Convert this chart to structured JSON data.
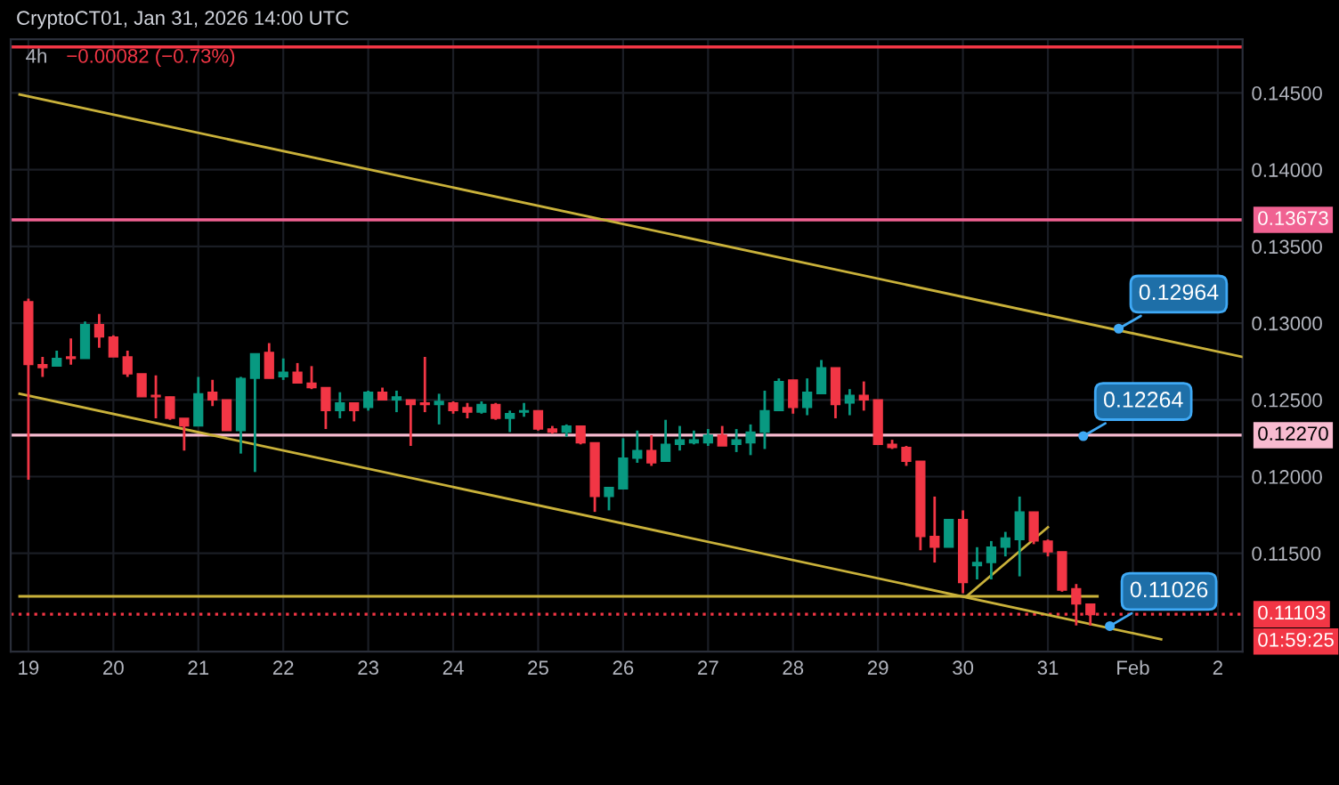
{
  "chart_data": {
    "type": "candlestick",
    "title": "4h",
    "subtitle": "−0.00082 (−0.73%)",
    "x": [
      "2026-01-19T00:00",
      "2026-01-19T04:00",
      "2026-01-19T08:00",
      "2026-01-19T12:00",
      "2026-01-19T16:00",
      "2026-01-19T20:00",
      "2026-01-20T00:00",
      "2026-01-20T04:00",
      "2026-01-20T08:00",
      "2026-01-20T12:00",
      "2026-01-20T16:00",
      "2026-01-20T20:00",
      "2026-01-21T00:00",
      "2026-01-21T04:00",
      "2026-01-21T08:00",
      "2026-01-21T12:00",
      "2026-01-21T16:00",
      "2026-01-21T20:00",
      "2026-01-22T00:00",
      "2026-01-22T04:00",
      "2026-01-22T08:00",
      "2026-01-22T12:00",
      "2026-01-22T16:00",
      "2026-01-22T20:00",
      "2026-01-23T00:00",
      "2026-01-23T04:00",
      "2026-01-23T08:00",
      "2026-01-23T12:00",
      "2026-01-23T16:00",
      "2026-01-23T20:00",
      "2026-01-24T00:00",
      "2026-01-24T04:00",
      "2026-01-24T08:00",
      "2026-01-24T12:00",
      "2026-01-24T16:00",
      "2026-01-24T20:00",
      "2026-01-25T00:00",
      "2026-01-25T04:00",
      "2026-01-25T08:00",
      "2026-01-25T12:00",
      "2026-01-25T16:00",
      "2026-01-25T20:00",
      "2026-01-26T00:00",
      "2026-01-26T04:00",
      "2026-01-26T08:00",
      "2026-01-26T12:00",
      "2026-01-26T16:00",
      "2026-01-26T20:00",
      "2026-01-27T00:00",
      "2026-01-27T04:00",
      "2026-01-27T08:00",
      "2026-01-27T12:00",
      "2026-01-27T16:00",
      "2026-01-27T20:00",
      "2026-01-28T00:00",
      "2026-01-28T04:00",
      "2026-01-28T08:00",
      "2026-01-28T12:00",
      "2026-01-28T16:00",
      "2026-01-28T20:00",
      "2026-01-29T00:00",
      "2026-01-29T04:00",
      "2026-01-29T08:00",
      "2026-01-29T12:00",
      "2026-01-29T16:00",
      "2026-01-29T20:00",
      "2026-01-30T00:00",
      "2026-01-30T04:00",
      "2026-01-30T08:00",
      "2026-01-30T12:00",
      "2026-01-30T16:00",
      "2026-01-30T20:00",
      "2026-01-31T00:00",
      "2026-01-31T04:00",
      "2026-01-31T08:00",
      "2026-01-31T12:00"
    ],
    "ohlc": [
      [
        0.1314,
        0.1316,
        0.1198,
        0.1273
      ],
      [
        0.1273,
        0.1278,
        0.1265,
        0.1271
      ],
      [
        0.1272,
        0.1282,
        0.1272,
        0.1277
      ],
      [
        0.1278,
        0.129,
        0.1273,
        0.1277
      ],
      [
        0.1277,
        0.1301,
        0.1277,
        0.1299
      ],
      [
        0.1299,
        0.1306,
        0.1284,
        0.1291
      ],
      [
        0.1291,
        0.1292,
        0.1278,
        0.1278
      ],
      [
        0.1278,
        0.1282,
        0.1265,
        0.1267
      ],
      [
        0.1267,
        0.1267,
        0.1252,
        0.1252
      ],
      [
        0.1253,
        0.1266,
        0.1238,
        0.1252
      ],
      [
        0.1252,
        0.1252,
        0.1237,
        0.1238
      ],
      [
        0.1238,
        0.1238,
        0.1217,
        0.1233
      ],
      [
        0.1233,
        0.1265,
        0.1233,
        0.1254
      ],
      [
        0.1255,
        0.1263,
        0.1246,
        0.125
      ],
      [
        0.125,
        0.125,
        0.123,
        0.123
      ],
      [
        0.123,
        0.1265,
        0.1215,
        0.1264
      ],
      [
        0.1264,
        0.128,
        0.1203,
        0.128
      ],
      [
        0.1281,
        0.1287,
        0.1264,
        0.1264
      ],
      [
        0.1265,
        0.1277,
        0.1263,
        0.1268
      ],
      [
        0.1268,
        0.1274,
        0.1261,
        0.1261
      ],
      [
        0.1261,
        0.1272,
        0.1257,
        0.1258
      ],
      [
        0.1258,
        0.1258,
        0.1231,
        0.1243
      ],
      [
        0.1243,
        0.1255,
        0.1238,
        0.1248
      ],
      [
        0.1248,
        0.1248,
        0.1236,
        0.1243
      ],
      [
        0.1245,
        0.1256,
        0.1243,
        0.1255
      ],
      [
        0.1255,
        0.1258,
        0.125,
        0.125
      ],
      [
        0.125,
        0.1256,
        0.1242,
        0.1252
      ],
      [
        0.125,
        0.125,
        0.122,
        0.1247
      ],
      [
        0.1248,
        0.1278,
        0.1242,
        0.1247
      ],
      [
        0.1247,
        0.1254,
        0.1234,
        0.1249
      ],
      [
        0.1248,
        0.1249,
        0.1241,
        0.1243
      ],
      [
        0.1245,
        0.1248,
        0.1238,
        0.1242
      ],
      [
        0.1242,
        0.1249,
        0.1241,
        0.1247
      ],
      [
        0.1247,
        0.1248,
        0.1237,
        0.1238
      ],
      [
        0.1238,
        0.1243,
        0.1229,
        0.1241
      ],
      [
        0.1242,
        0.1248,
        0.1239,
        0.1243
      ],
      [
        0.1243,
        0.1243,
        0.123,
        0.1231
      ],
      [
        0.1231,
        0.1233,
        0.1228,
        0.1229
      ],
      [
        0.1229,
        0.1234,
        0.1226,
        0.1233
      ],
      [
        0.1233,
        0.1233,
        0.1221,
        0.1222
      ],
      [
        0.1222,
        0.1222,
        0.1177,
        0.1187
      ],
      [
        0.1187,
        0.1193,
        0.1178,
        0.1193
      ],
      [
        0.1192,
        0.1225,
        0.1192,
        0.1212
      ],
      [
        0.1212,
        0.123,
        0.1209,
        0.1217
      ],
      [
        0.1217,
        0.1227,
        0.1207,
        0.1209
      ],
      [
        0.121,
        0.1237,
        0.121,
        0.1221
      ],
      [
        0.1221,
        0.1233,
        0.1217,
        0.1224
      ],
      [
        0.1222,
        0.123,
        0.1221,
        0.1224
      ],
      [
        0.1222,
        0.1231,
        0.122,
        0.1227
      ],
      [
        0.1227,
        0.1233,
        0.122,
        0.122
      ],
      [
        0.1221,
        0.1231,
        0.1216,
        0.1224
      ],
      [
        0.1222,
        0.1234,
        0.1214,
        0.1229
      ],
      [
        0.1229,
        0.1256,
        0.1218,
        0.1243
      ],
      [
        0.1243,
        0.1264,
        0.1243,
        0.1262
      ],
      [
        0.1263,
        0.1263,
        0.1241,
        0.1245
      ],
      [
        0.1245,
        0.1264,
        0.124,
        0.1255
      ],
      [
        0.1254,
        0.1276,
        0.1254,
        0.1271
      ],
      [
        0.1271,
        0.1271,
        0.1238,
        0.1247
      ],
      [
        0.1248,
        0.1257,
        0.124,
        0.1253
      ],
      [
        0.1253,
        0.1262,
        0.1243,
        0.125
      ],
      [
        0.125,
        0.125,
        0.1221,
        0.1221
      ],
      [
        0.1221,
        0.1224,
        0.1218,
        0.1219
      ],
      [
        0.1219,
        0.122,
        0.1207,
        0.121
      ],
      [
        0.121,
        0.121,
        0.1152,
        0.1161
      ],
      [
        0.1161,
        0.1187,
        0.1144,
        0.1154
      ],
      [
        0.1154,
        0.1172,
        0.1154,
        0.1172
      ],
      [
        0.1172,
        0.1178,
        0.1124,
        0.1131
      ],
      [
        0.1142,
        0.1154,
        0.1133,
        0.1144
      ],
      [
        0.1144,
        0.1158,
        0.1133,
        0.1154
      ],
      [
        0.1154,
        0.1164,
        0.1148,
        0.116
      ],
      [
        0.1159,
        0.1187,
        0.1135,
        0.1177
      ],
      [
        0.1177,
        0.1177,
        0.1156,
        0.1158
      ],
      [
        0.1158,
        0.1159,
        0.1148,
        0.1151
      ],
      [
        0.1151,
        0.1151,
        0.1125,
        0.1126
      ],
      [
        0.1127,
        0.113,
        0.1103,
        0.1117
      ],
      [
        0.1117,
        0.1117,
        0.1103,
        0.111
      ]
    ],
    "colors": [
      "#f23645",
      "#f23645",
      "#089981",
      "#f23645",
      "#089981",
      "#f23645",
      "#f23645",
      "#f23645",
      "#f23645",
      "#f23645",
      "#f23645",
      "#f23645",
      "#089981",
      "#f23645",
      "#f23645",
      "#089981",
      "#089981",
      "#f23645",
      "#089981",
      "#f23645",
      "#f23645",
      "#f23645",
      "#089981",
      "#f23645",
      "#089981",
      "#f23645",
      "#089981",
      "#f23645",
      "#f23645",
      "#089981",
      "#f23645",
      "#f23645",
      "#089981",
      "#f23645",
      "#089981",
      "#089981",
      "#f23645",
      "#f23645",
      "#089981",
      "#f23645",
      "#f23645",
      "#089981",
      "#089981",
      "#089981",
      "#f23645",
      "#089981",
      "#089981",
      "#089981",
      "#089981",
      "#f23645",
      "#089981",
      "#089981",
      "#089981",
      "#089981",
      "#f23645",
      "#089981",
      "#089981",
      "#f23645",
      "#089981",
      "#f23645",
      "#f23645",
      "#f23645",
      "#f23645",
      "#f23645",
      "#f23645",
      "#089981",
      "#f23645",
      "#089981",
      "#089981",
      "#089981",
      "#089981",
      "#f23645",
      "#f23645",
      "#f23645",
      "#f23645",
      "#f23645"
    ],
    "series": [
      {
        "type": "line",
        "color": "#c9b13a",
        "x": [
          "2026-01-18T21:30",
          "2026-02-02T07:00"
        ],
        "values": [
          0.1449,
          0.1278
        ]
      },
      {
        "type": "line",
        "color": "#c9b13a",
        "x": [
          "2026-01-18T21:30",
          "2026-02-01T08:00"
        ],
        "values": [
          0.1254,
          0.1094
        ]
      },
      {
        "type": "line",
        "color": "#c9b13a",
        "x": [
          "2026-01-30T01:00",
          "2026-01-31T00:00"
        ],
        "values": [
          0.1122,
          0.1167
        ]
      },
      {
        "type": "line",
        "color": "#c9b13a",
        "x": [
          "2026-01-18T21:30",
          "2026-01-31T14:00"
        ],
        "values": [
          0.1122,
          0.1122
        ]
      }
    ],
    "ref_lines": [
      {
        "axis": "y",
        "value": 0.148,
        "color": "#f23645"
      },
      {
        "axis": "y",
        "value": 0.13673,
        "label": "0.13673",
        "color": "#f06292"
      },
      {
        "axis": "y",
        "value": 0.1227,
        "label": "0.12270",
        "color": "#f8bbd0"
      },
      {
        "axis": "y",
        "value": 0.11103,
        "label": "0.11103",
        "color": "#f23645",
        "line_style": "dotted"
      }
    ],
    "annotations": [
      "CryptoCT01, Jan 31, 2026 14:00 UTC",
      "01:59:25",
      {
        "text": "0.12964",
        "x": "2026-01-31T20:00",
        "y": 0.12964
      },
      {
        "text": "0.12264",
        "x": "2026-01-31T10:00",
        "y": 0.12264
      },
      {
        "text": "0.11026",
        "x": "2026-01-31T17:30",
        "y": 0.11026
      }
    ],
    "xlim": [
      "2026-01-18T19:00",
      "2026-02-02T07:00"
    ],
    "xticks": [
      {
        "value": "2026-01-19",
        "label": "19"
      },
      {
        "value": "2026-01-20",
        "label": "20"
      },
      {
        "value": "2026-01-21",
        "label": "21"
      },
      {
        "value": "2026-01-22",
        "label": "22"
      },
      {
        "value": "2026-01-23",
        "label": "23"
      },
      {
        "value": "2026-01-24",
        "label": "24"
      },
      {
        "value": "2026-01-25",
        "label": "25"
      },
      {
        "value": "2026-01-26",
        "label": "26"
      },
      {
        "value": "2026-01-27",
        "label": "27"
      },
      {
        "value": "2026-01-28",
        "label": "28"
      },
      {
        "value": "2026-01-29",
        "label": "29"
      },
      {
        "value": "2026-01-30",
        "label": "30"
      },
      {
        "value": "2026-01-31",
        "label": "31"
      },
      {
        "value": "2026-02-01",
        "label": "Feb"
      },
      {
        "value": "2026-02-02",
        "label": "2"
      }
    ],
    "ylim": [
      0.1086,
      0.1485
    ],
    "yticks": [
      {
        "value": 0.115,
        "label": "0.11500"
      },
      {
        "value": 0.12,
        "label": "0.12000"
      },
      {
        "value": 0.125,
        "label": "0.12500"
      },
      {
        "value": 0.13,
        "label": "0.13000"
      },
      {
        "value": 0.135,
        "label": "0.13500"
      },
      {
        "value": 0.14,
        "label": "0.14000"
      },
      {
        "value": 0.145,
        "label": "0.14500"
      }
    ],
    "grid": true
  }
}
